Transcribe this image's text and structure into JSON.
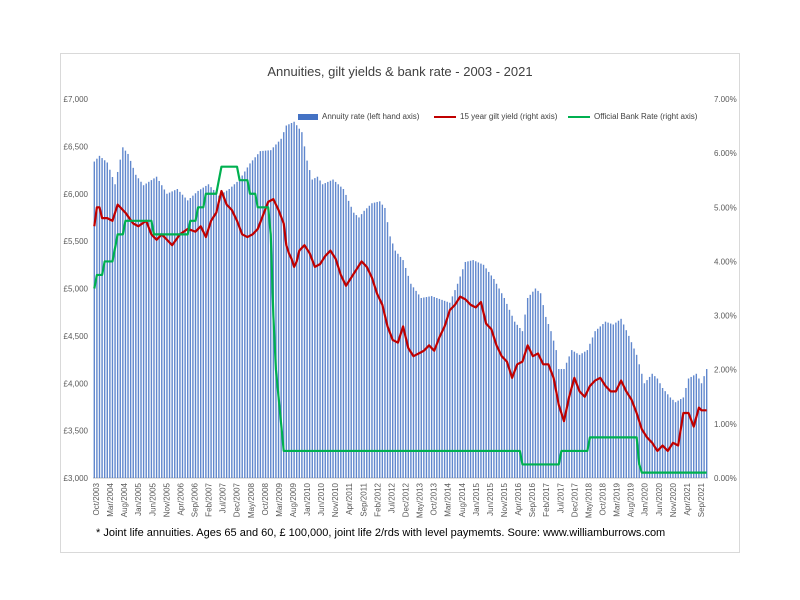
{
  "chart_data": {
    "type": "bar+line",
    "title": "Annuities, gilt yields & bank rate - 2003 - 2021",
    "footnote": "* Joint life annuities. Ages 65 and 60, £ 100,000, joint life 2/rds with level paymemts. Soure: www.williamburrows.com",
    "left_axis": {
      "ylim": [
        3000,
        7000
      ],
      "ticks": [
        "£3,000",
        "£3,500",
        "£4,000",
        "£4,500",
        "£5,000",
        "£5,500",
        "£6,000",
        "£6,500",
        "£7,000"
      ]
    },
    "right_axis": {
      "ylim": [
        0,
        7
      ],
      "ticks": [
        "0.00%",
        "1.00%",
        "2.00%",
        "3.00%",
        "4.00%",
        "5.00%",
        "6.00%",
        "7.00%"
      ]
    },
    "x_tick_labels": [
      "Oct/2003",
      "Mar/2004",
      "Aug/2004",
      "Jan/2005",
      "Jun/2005",
      "Nov/2005",
      "Apr/2006",
      "Sep/2006",
      "Feb/2007",
      "Jul/2007",
      "Dec/2007",
      "May/2008",
      "Oct/2008",
      "Mar/2009",
      "Aug/2009",
      "Jan/2010",
      "Jun/2010",
      "Nov/2010",
      "Apr/2011",
      "Sep/2011",
      "Feb/2012",
      "Jul/2012",
      "Dec/2012",
      "May/2013",
      "Oct/2013",
      "Mar/2014",
      "Aug/2014",
      "Jan/2015",
      "Jun/2015",
      "Nov/2015",
      "Apr/2016",
      "Sep/2016",
      "Feb/2017",
      "Jul/2017",
      "Dec/2017",
      "May/2018",
      "Oct/2018",
      "Mar/2019",
      "Aug/2019",
      "Jan/2020",
      "Jun/2020",
      "Nov/2020",
      "Apr/2021",
      "Sep/2021"
    ],
    "legend_position": "top-right",
    "series": [
      {
        "name": "Annuity rate (left hand axis)",
        "axis": "left",
        "kind": "bar",
        "color": "#4472c4",
        "knots": [
          [
            0,
            6340
          ],
          [
            2,
            6400
          ],
          [
            5,
            6330
          ],
          [
            8,
            6100
          ],
          [
            11,
            6490
          ],
          [
            13,
            6420
          ],
          [
            16,
            6200
          ],
          [
            19,
            6090
          ],
          [
            24,
            6180
          ],
          [
            28,
            6000
          ],
          [
            32,
            6050
          ],
          [
            36,
            5930
          ],
          [
            40,
            6030
          ],
          [
            44,
            6100
          ],
          [
            48,
            5980
          ],
          [
            52,
            6050
          ],
          [
            56,
            6150
          ],
          [
            60,
            6320
          ],
          [
            64,
            6450
          ],
          [
            68,
            6460
          ],
          [
            72,
            6580
          ],
          [
            74,
            6720
          ],
          [
            77,
            6760
          ],
          [
            80,
            6650
          ],
          [
            82,
            6350
          ],
          [
            84,
            6150
          ],
          [
            86,
            6180
          ],
          [
            88,
            6100
          ],
          [
            92,
            6150
          ],
          [
            96,
            6050
          ],
          [
            100,
            5800
          ],
          [
            102,
            5750
          ],
          [
            104,
            5820
          ],
          [
            107,
            5900
          ],
          [
            110,
            5920
          ],
          [
            112,
            5850
          ],
          [
            114,
            5550
          ],
          [
            116,
            5400
          ],
          [
            119,
            5300
          ],
          [
            122,
            5050
          ],
          [
            126,
            4900
          ],
          [
            130,
            4920
          ],
          [
            134,
            4880
          ],
          [
            137,
            4850
          ],
          [
            140,
            5050
          ],
          [
            143,
            5280
          ],
          [
            146,
            5300
          ],
          [
            150,
            5250
          ],
          [
            154,
            5100
          ],
          [
            158,
            4900
          ],
          [
            162,
            4650
          ],
          [
            165,
            4550
          ],
          [
            167,
            4900
          ],
          [
            170,
            5000
          ],
          [
            172,
            4950
          ],
          [
            174,
            4700
          ],
          [
            176,
            4550
          ],
          [
            178,
            4350
          ],
          [
            179,
            4150
          ],
          [
            181,
            4150
          ],
          [
            184,
            4350
          ],
          [
            187,
            4300
          ],
          [
            190,
            4350
          ],
          [
            193,
            4550
          ],
          [
            197,
            4650
          ],
          [
            200,
            4620
          ],
          [
            203,
            4680
          ],
          [
            206,
            4500
          ],
          [
            209,
            4300
          ],
          [
            212,
            4000
          ],
          [
            215,
            4100
          ],
          [
            217,
            4050
          ],
          [
            219,
            3950
          ],
          [
            222,
            3850
          ],
          [
            224,
            3800
          ],
          [
            227,
            3850
          ],
          [
            229,
            4050
          ],
          [
            232,
            4100
          ],
          [
            234,
            4000
          ],
          [
            236,
            4150
          ]
        ]
      },
      {
        "name": "15 year gilt yield (right axis)",
        "axis": "right",
        "kind": "line",
        "color": "#c00000",
        "knots": [
          [
            0,
            4.65
          ],
          [
            1,
            5.0
          ],
          [
            2,
            5.0
          ],
          [
            3,
            4.8
          ],
          [
            5,
            4.8
          ],
          [
            7,
            4.75
          ],
          [
            9,
            5.05
          ],
          [
            12,
            4.9
          ],
          [
            15,
            4.7
          ],
          [
            17,
            4.65
          ],
          [
            20,
            4.75
          ],
          [
            22,
            4.5
          ],
          [
            24,
            4.4
          ],
          [
            26,
            4.5
          ],
          [
            28,
            4.4
          ],
          [
            30,
            4.3
          ],
          [
            33,
            4.5
          ],
          [
            36,
            4.6
          ],
          [
            39,
            4.55
          ],
          [
            41,
            4.65
          ],
          [
            43,
            4.45
          ],
          [
            45,
            4.75
          ],
          [
            47,
            4.9
          ],
          [
            49,
            5.3
          ],
          [
            51,
            5.05
          ],
          [
            53,
            4.95
          ],
          [
            55,
            4.75
          ],
          [
            57,
            4.5
          ],
          [
            59,
            4.45
          ],
          [
            61,
            4.5
          ],
          [
            63,
            4.6
          ],
          [
            65,
            4.85
          ],
          [
            67,
            5.1
          ],
          [
            69,
            5.15
          ],
          [
            71,
            4.95
          ],
          [
            73,
            4.7
          ],
          [
            74,
            4.3
          ],
          [
            75,
            4.15
          ],
          [
            76,
            4.05
          ],
          [
            77,
            3.9
          ],
          [
            78,
            4.0
          ],
          [
            79,
            4.2
          ],
          [
            81,
            4.3
          ],
          [
            83,
            4.15
          ],
          [
            85,
            3.9
          ],
          [
            87,
            3.95
          ],
          [
            89,
            4.1
          ],
          [
            91,
            4.2
          ],
          [
            93,
            4.05
          ],
          [
            95,
            3.75
          ],
          [
            97,
            3.55
          ],
          [
            99,
            3.7
          ],
          [
            101,
            3.85
          ],
          [
            103,
            4.0
          ],
          [
            105,
            3.9
          ],
          [
            107,
            3.7
          ],
          [
            109,
            3.4
          ],
          [
            111,
            3.2
          ],
          [
            113,
            2.8
          ],
          [
            115,
            2.55
          ],
          [
            117,
            2.5
          ],
          [
            119,
            2.8
          ],
          [
            121,
            2.4
          ],
          [
            123,
            2.25
          ],
          [
            125,
            2.3
          ],
          [
            127,
            2.35
          ],
          [
            129,
            2.45
          ],
          [
            131,
            2.35
          ],
          [
            133,
            2.6
          ],
          [
            135,
            2.8
          ],
          [
            137,
            3.1
          ],
          [
            139,
            3.2
          ],
          [
            141,
            3.35
          ],
          [
            143,
            3.3
          ],
          [
            145,
            3.2
          ],
          [
            147,
            3.15
          ],
          [
            149,
            3.25
          ],
          [
            151,
            2.85
          ],
          [
            153,
            2.75
          ],
          [
            155,
            2.45
          ],
          [
            157,
            2.25
          ],
          [
            159,
            2.15
          ],
          [
            161,
            1.85
          ],
          [
            163,
            2.1
          ],
          [
            165,
            2.15
          ],
          [
            167,
            2.45
          ],
          [
            169,
            2.25
          ],
          [
            171,
            2.3
          ],
          [
            173,
            2.1
          ],
          [
            175,
            2.1
          ],
          [
            177,
            1.85
          ],
          [
            179,
            1.35
          ],
          [
            181,
            1.05
          ],
          [
            183,
            1.5
          ],
          [
            185,
            1.85
          ],
          [
            187,
            1.6
          ],
          [
            189,
            1.5
          ],
          [
            191,
            1.7
          ],
          [
            193,
            1.8
          ],
          [
            195,
            1.85
          ],
          [
            197,
            1.7
          ],
          [
            199,
            1.6
          ],
          [
            201,
            1.6
          ],
          [
            203,
            1.8
          ],
          [
            205,
            1.6
          ],
          [
            207,
            1.45
          ],
          [
            209,
            1.2
          ],
          [
            211,
            0.9
          ],
          [
            213,
            0.75
          ],
          [
            215,
            0.65
          ],
          [
            217,
            0.5
          ],
          [
            219,
            0.6
          ],
          [
            221,
            0.5
          ],
          [
            223,
            0.65
          ],
          [
            225,
            0.6
          ],
          [
            227,
            1.2
          ],
          [
            229,
            1.2
          ],
          [
            231,
            0.95
          ],
          [
            233,
            1.3
          ],
          [
            234,
            1.25
          ]
        ]
      },
      {
        "name": "Official Bank Rate (right axis)",
        "axis": "right",
        "kind": "step",
        "color": "#00b050",
        "knots": [
          [
            0,
            3.5
          ],
          [
            1,
            3.75
          ],
          [
            3,
            3.75
          ],
          [
            4,
            4.0
          ],
          [
            7,
            4.0
          ],
          [
            8,
            4.25
          ],
          [
            9,
            4.5
          ],
          [
            11,
            4.5
          ],
          [
            12,
            4.75
          ],
          [
            22,
            4.75
          ],
          [
            23,
            4.5
          ],
          [
            36,
            4.5
          ],
          [
            37,
            4.75
          ],
          [
            39,
            4.75
          ],
          [
            40,
            5.0
          ],
          [
            42,
            5.0
          ],
          [
            43,
            5.25
          ],
          [
            47,
            5.25
          ],
          [
            48,
            5.5
          ],
          [
            49,
            5.75
          ],
          [
            55,
            5.75
          ],
          [
            56,
            5.5
          ],
          [
            59,
            5.5
          ],
          [
            60,
            5.25
          ],
          [
            62,
            5.25
          ],
          [
            63,
            5.0
          ],
          [
            67,
            5.0
          ],
          [
            68,
            4.5
          ],
          [
            69,
            3.0
          ],
          [
            70,
            2.0
          ],
          [
            71,
            1.5
          ],
          [
            72,
            1.0
          ],
          [
            73,
            0.5
          ],
          [
            164,
            0.5
          ],
          [
            165,
            0.25
          ],
          [
            179,
            0.25
          ],
          [
            180,
            0.5
          ],
          [
            190,
            0.5
          ],
          [
            191,
            0.75
          ],
          [
            209,
            0.75
          ],
          [
            210,
            0.25
          ],
          [
            211,
            0.1
          ],
          [
            236,
            0.1
          ]
        ]
      }
    ]
  }
}
